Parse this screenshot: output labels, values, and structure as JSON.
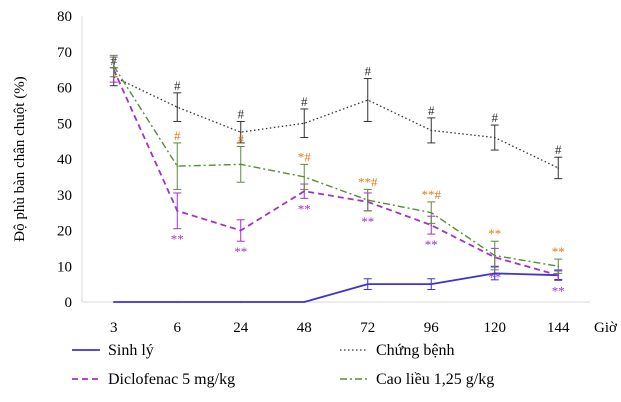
{
  "chart_data": {
    "type": "line",
    "ylabel": "Độ phù bàn chân chuột (%)",
    "xlabel": "Giờ",
    "categories": [
      "3",
      "6",
      "24",
      "48",
      "72",
      "96",
      "120",
      "144"
    ],
    "ylim": [
      0,
      80
    ],
    "yticks": [
      0,
      10,
      20,
      30,
      40,
      50,
      60,
      70,
      80
    ],
    "grid": false,
    "legend_position": "bottom",
    "series": [
      {
        "name": "Sinh lý",
        "color": "#3b33d6",
        "dash": "solid",
        "values": [
          0,
          0,
          0,
          0,
          5,
          5,
          8,
          7.5
        ],
        "errors": [
          0,
          0,
          0,
          0,
          1.5,
          1.5,
          1.8,
          1.2
        ],
        "markers": []
      },
      {
        "name": "Chứng bệnh",
        "color": "#333333",
        "dash": "dotted",
        "values": [
          63,
          54.5,
          47.5,
          50,
          56.5,
          48,
          46,
          37.5
        ],
        "errors": [
          2.5,
          4,
          3,
          4,
          6,
          3.5,
          3.5,
          3
        ],
        "markers": [
          {
            "label": "#",
            "color": "#333333",
            "position": "above"
          },
          {
            "label": "#",
            "color": "#333333",
            "position": "above"
          },
          {
            "label": "#",
            "color": "#333333",
            "position": "above"
          },
          {
            "label": "#",
            "color": "#333333",
            "position": "above"
          },
          {
            "label": "#",
            "color": "#333333",
            "position": "above"
          },
          {
            "label": "#",
            "color": "#333333",
            "position": "above"
          },
          {
            "label": "#",
            "color": "#333333",
            "position": "above"
          },
          {
            "label": "#",
            "color": "#333333",
            "position": "above"
          }
        ]
      },
      {
        "name": "Diclofenac 5 mg/kg",
        "color": "#a032c8",
        "dash": "dashed",
        "values": [
          65,
          25.5,
          20,
          31,
          28,
          21.5,
          12.5,
          7.5
        ],
        "errors": [
          3.5,
          5,
          3,
          2,
          2.5,
          2.5,
          2.5,
          1.5
        ],
        "markers": [
          null,
          {
            "label": "**",
            "color": "#a032c8",
            "position": "below"
          },
          {
            "label": "**",
            "color": "#a032c8",
            "position": "below"
          },
          {
            "label": "**",
            "color": "#a032c8",
            "position": "below"
          },
          {
            "label": "**",
            "color": "#a032c8",
            "position": "below"
          },
          {
            "label": "**",
            "color": "#a032c8",
            "position": "below"
          },
          {
            "label": "**",
            "color": "#a032c8",
            "position": "below"
          },
          {
            "label": "**",
            "color": "#a032c8",
            "position": "below"
          }
        ]
      },
      {
        "name": "Cao liều 1,25 g/kg",
        "color": "#5a8a3c",
        "dash": "dashdot",
        "values": [
          66,
          38,
          38.5,
          35,
          28.5,
          25,
          13,
          10
        ],
        "errors": [
          3,
          6.5,
          5,
          3.5,
          3,
          3,
          4,
          2
        ],
        "markers": [
          null,
          {
            "label": "#",
            "color": "#e07b1a",
            "position": "above"
          },
          {
            "label": "#",
            "color": "#e07b1a",
            "position": "above"
          },
          {
            "label": "*#",
            "color": "#e07b1a",
            "position": "above"
          },
          {
            "label": "**#",
            "color": "#e07b1a",
            "position": "above"
          },
          {
            "label": "**#",
            "color": "#e07b1a",
            "position": "above"
          },
          {
            "label": "**",
            "color": "#e07b1a",
            "position": "above"
          },
          {
            "label": "**",
            "color": "#e07b1a",
            "position": "above"
          }
        ]
      }
    ]
  }
}
